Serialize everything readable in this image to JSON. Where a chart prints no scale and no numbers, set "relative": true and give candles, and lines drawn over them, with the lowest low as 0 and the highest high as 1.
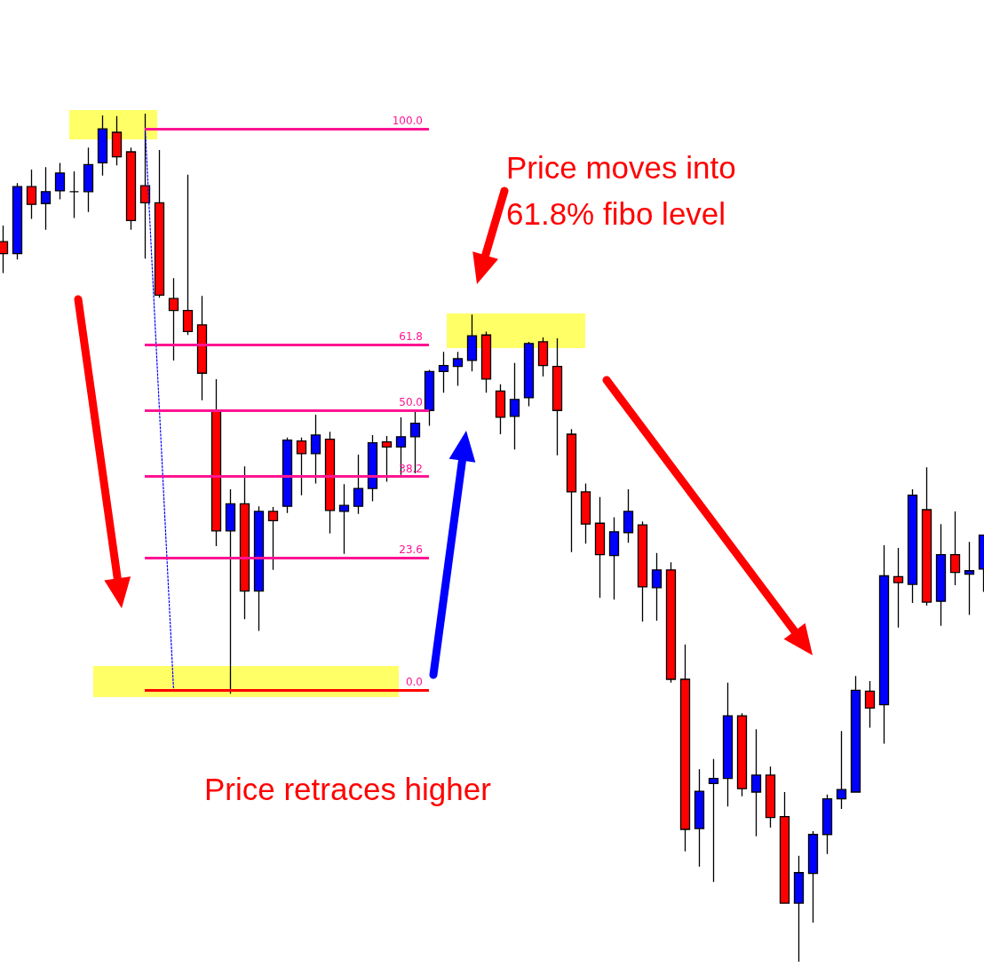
{
  "chart_data": {
    "type": "candlestick",
    "relative": true,
    "categories": [
      null,
      null,
      null,
      null,
      null,
      null,
      null,
      null,
      null,
      null,
      null,
      null,
      null,
      null,
      null,
      null,
      null,
      null,
      null,
      null,
      null,
      null,
      null,
      null,
      null,
      null,
      null,
      null,
      null,
      null,
      null,
      null,
      null,
      null,
      null,
      null,
      null,
      null,
      null,
      null,
      null,
      null,
      null,
      null,
      null,
      null,
      null,
      null,
      null,
      null,
      null,
      null,
      null,
      null,
      null,
      null,
      null,
      null,
      null,
      null,
      null,
      null,
      null,
      null,
      null,
      null,
      null,
      null,
      null,
      null
    ],
    "ohlc": [
      [
        0.849,
        0.868,
        0.812,
        0.835
      ],
      [
        0.835,
        0.918,
        0.828,
        0.914
      ],
      [
        0.914,
        0.934,
        0.876,
        0.893
      ],
      [
        0.894,
        0.937,
        0.863,
        0.908
      ],
      [
        0.909,
        0.942,
        0.899,
        0.93
      ],
      [
        0.908,
        0.932,
        0.877,
        0.908
      ],
      [
        0.908,
        0.96,
        0.884,
        0.94
      ],
      [
        0.942,
        0.998,
        0.927,
        0.982
      ],
      [
        0.978,
        0.997,
        0.939,
        0.949
      ],
      [
        0.955,
        0.96,
        0.863,
        0.874
      ],
      [
        0.915,
        1.0,
        0.829,
        0.895
      ],
      [
        0.895,
        0.957,
        0.783,
        0.786
      ],
      [
        0.782,
        0.806,
        0.709,
        0.768
      ],
      [
        0.768,
        0.928,
        0.739,
        0.743
      ],
      [
        0.751,
        0.785,
        0.662,
        0.694
      ],
      [
        0.65,
        0.687,
        0.49,
        0.508
      ],
      [
        0.508,
        0.557,
        0.316,
        0.54
      ],
      [
        0.54,
        0.584,
        0.404,
        0.437
      ],
      [
        0.437,
        0.537,
        0.39,
        0.531
      ],
      [
        0.531,
        0.536,
        0.462,
        0.52
      ],
      [
        0.537,
        0.618,
        0.529,
        0.615
      ],
      [
        0.614,
        0.618,
        0.55,
        0.599
      ],
      [
        0.599,
        0.645,
        0.564,
        0.621
      ],
      [
        0.616,
        0.625,
        0.505,
        0.532
      ],
      [
        0.531,
        0.563,
        0.481,
        0.538
      ],
      [
        0.537,
        0.598,
        0.528,
        0.558
      ],
      [
        0.558,
        0.621,
        0.543,
        0.612
      ],
      [
        0.613,
        0.62,
        0.566,
        0.607
      ],
      [
        0.607,
        0.642,
        0.574,
        0.619
      ],
      [
        0.619,
        0.649,
        0.576,
        0.635
      ],
      [
        0.65,
        0.698,
        0.632,
        0.696
      ],
      [
        0.696,
        0.719,
        0.671,
        0.703
      ],
      [
        0.702,
        0.719,
        0.679,
        0.711
      ],
      [
        0.709,
        0.763,
        0.696,
        0.738
      ],
      [
        0.739,
        0.743,
        0.671,
        0.687
      ],
      [
        0.673,
        0.681,
        0.622,
        0.642
      ],
      [
        0.643,
        0.706,
        0.604,
        0.663
      ],
      [
        0.665,
        0.731,
        0.655,
        0.729
      ],
      [
        0.731,
        0.736,
        0.69,
        0.703
      ],
      [
        0.702,
        0.735,
        0.597,
        0.65
      ],
      [
        0.622,
        0.628,
        0.483,
        0.554
      ],
      [
        0.554,
        0.564,
        0.493,
        0.516
      ],
      [
        0.517,
        0.548,
        0.429,
        0.48
      ],
      [
        0.479,
        0.524,
        0.427,
        0.507
      ],
      [
        0.506,
        0.557,
        0.494,
        0.531
      ],
      [
        0.515,
        0.519,
        0.401,
        0.442
      ],
      [
        0.441,
        0.482,
        0.402,
        0.462
      ],
      [
        0.462,
        0.471,
        0.329,
        0.333
      ],
      [
        0.333,
        0.374,
        0.13,
        0.156
      ],
      [
        0.157,
        0.227,
        0.112,
        0.201
      ],
      [
        0.21,
        0.239,
        0.094,
        0.216
      ],
      [
        0.216,
        0.329,
        0.183,
        0.29
      ],
      [
        0.29,
        0.293,
        0.195,
        0.204
      ],
      [
        0.2,
        0.274,
        0.148,
        0.22
      ],
      [
        0.22,
        0.23,
        0.158,
        0.17
      ],
      [
        0.171,
        0.2,
        0.069,
        0.069
      ],
      [
        0.069,
        0.125,
        0.0,
        0.105
      ],
      [
        0.104,
        0.154,
        0.046,
        0.15
      ],
      [
        0.15,
        0.197,
        0.127,
        0.192
      ],
      [
        0.192,
        0.272,
        0.18,
        0.203
      ],
      [
        0.2,
        0.337,
        0.2,
        0.32
      ],
      [
        0.319,
        0.331,
        0.276,
        0.299
      ],
      [
        0.303,
        0.491,
        0.257,
        0.455
      ],
      [
        0.454,
        0.488,
        0.394,
        0.447
      ],
      [
        0.445,
        0.557,
        0.423,
        0.55
      ],
      [
        0.533,
        0.583,
        0.42,
        0.424
      ],
      [
        0.425,
        0.516,
        0.396,
        0.48
      ],
      [
        0.48,
        0.531,
        0.444,
        0.459
      ],
      [
        0.457,
        0.495,
        0.409,
        0.461
      ],
      [
        0.463,
        0.503,
        0.436,
        0.503
      ]
    ],
    "colors": [
      "#ff0000",
      "#0000ff",
      "#ff0000",
      "#0000ff",
      "#0000ff",
      "#000000",
      "#0000ff",
      "#0000ff",
      "#ff0000",
      "#ff0000",
      "#ff0000",
      "#ff0000",
      "#ff0000",
      "#ff0000",
      "#ff0000",
      "#ff0000",
      "#0000ff",
      "#ff0000",
      "#0000ff",
      "#ff0000",
      "#0000ff",
      "#ff0000",
      "#0000ff",
      "#ff0000",
      "#0000ff",
      "#0000ff",
      "#0000ff",
      "#ff0000",
      "#0000ff",
      "#0000ff",
      "#0000ff",
      "#0000ff",
      "#0000ff",
      "#0000ff",
      "#ff0000",
      "#ff0000",
      "#0000ff",
      "#0000ff",
      "#ff0000",
      "#ff0000",
      "#ff0000",
      "#ff0000",
      "#ff0000",
      "#0000ff",
      "#0000ff",
      "#ff0000",
      "#0000ff",
      "#ff0000",
      "#ff0000",
      "#0000ff",
      "#0000ff",
      "#0000ff",
      "#ff0000",
      "#0000ff",
      "#ff0000",
      "#ff0000",
      "#0000ff",
      "#0000ff",
      "#0000ff",
      "#0000ff",
      "#0000ff",
      "#ff0000",
      "#0000ff",
      "#ff0000",
      "#0000ff",
      "#ff0000",
      "#0000ff",
      "#ff0000",
      "#0000ff",
      "#0000ff"
    ],
    "ref_lines": [
      {
        "axis": "y",
        "value": 0.982,
        "color": "#ff1493"
      },
      {
        "axis": "y",
        "value": 0.728,
        "color": "#ff1493"
      },
      {
        "axis": "y",
        "value": 0.65,
        "color": "#ff1493"
      },
      {
        "axis": "y",
        "value": 0.572,
        "color": "#ff1493"
      },
      {
        "axis": "y",
        "value": 0.476,
        "color": "#ff1493"
      },
      {
        "axis": "y",
        "value": 0.32,
        "color": "#ff0000"
      }
    ],
    "series": [
      {
        "type": "line",
        "color": "#0000ff",
        "line_style": "dotted",
        "values": [
          null,
          null,
          null,
          null,
          null,
          null,
          null,
          null,
          null,
          null,
          0.982,
          0.651,
          0.32,
          null,
          null,
          null,
          null,
          null,
          null,
          null,
          null,
          null,
          null,
          null,
          null,
          null,
          null,
          null,
          null,
          null,
          null,
          null,
          null,
          null,
          null,
          null,
          null,
          null,
          null,
          null,
          null,
          null,
          null,
          null,
          null,
          null,
          null,
          null,
          null,
          null,
          null,
          null,
          null,
          null,
          null,
          null,
          null,
          null,
          null,
          null,
          null,
          null,
          null,
          null,
          null,
          null,
          null,
          null,
          null,
          null
        ]
      }
    ],
    "annotations": [
      "Price moves into 61.8% fibo level",
      "Price retraces higher",
      {
        "text": "100.0",
        "y": 0.982
      },
      {
        "text": "61.8",
        "y": 0.728
      },
      {
        "text": "50.0",
        "y": 0.65
      },
      {
        "text": "38.2",
        "y": 0.572
      },
      {
        "text": "23.6",
        "y": 0.476
      },
      {
        "text": "0.0",
        "y": 0.32
      }
    ]
  }
}
